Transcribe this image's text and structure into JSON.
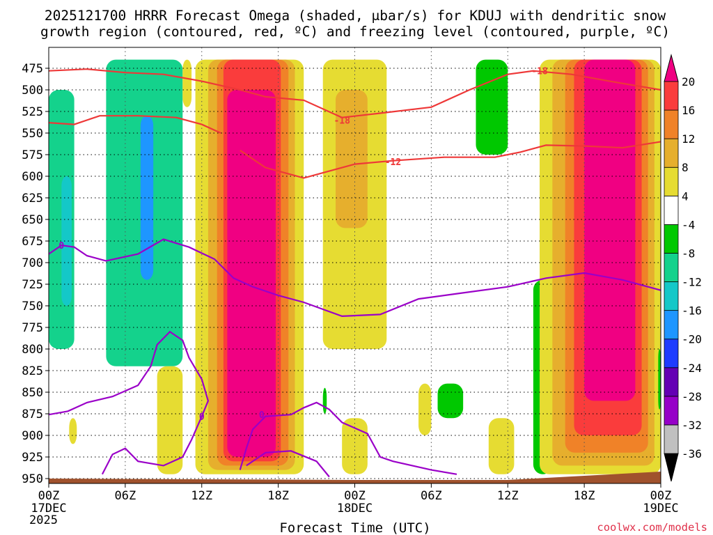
{
  "chart_data": {
    "type": "heatmap",
    "title_line1": "2025121700 HRRR Forecast Omega (shaded, μbar/s) for KDUJ with dendritic snow",
    "title_line2": "growth region (contoured, red, ºC) and freezing level (contoured, purple, ºC)",
    "xlabel": "Forecast Time (UTC)",
    "credit": "coolwx.com/models",
    "x_range_hours": [
      0,
      48
    ],
    "x_ticks": [
      {
        "h": 0,
        "label": "00Z",
        "sub1": "17DEC",
        "sub2": "2025"
      },
      {
        "h": 6,
        "label": "06Z",
        "sub1": "",
        "sub2": ""
      },
      {
        "h": 12,
        "label": "12Z",
        "sub1": "",
        "sub2": ""
      },
      {
        "h": 18,
        "label": "18Z",
        "sub1": "",
        "sub2": ""
      },
      {
        "h": 24,
        "label": "00Z",
        "sub1": "18DEC",
        "sub2": ""
      },
      {
        "h": 30,
        "label": "06Z",
        "sub1": "",
        "sub2": ""
      },
      {
        "h": 36,
        "label": "12Z",
        "sub1": "",
        "sub2": ""
      },
      {
        "h": 42,
        "label": "18Z",
        "sub1": "",
        "sub2": ""
      },
      {
        "h": 48,
        "label": "00Z",
        "sub1": "19DEC",
        "sub2": ""
      }
    ],
    "y_ticks_hpa": [
      475,
      500,
      525,
      550,
      575,
      600,
      625,
      650,
      675,
      700,
      725,
      750,
      775,
      800,
      825,
      850,
      875,
      900,
      925,
      950
    ],
    "colorbar": {
      "colors": [
        "#c0c0c0",
        "#9600c8",
        "#6400b4",
        "#1e3cff",
        "#1e96ff",
        "#14c8c8",
        "#14d28c",
        "#00c800",
        "#ffffff",
        "#e6dc32",
        "#e6af2d",
        "#f08228",
        "#fa3c3c",
        "#f00082"
      ],
      "labels": [
        "-36",
        "-32",
        "-28",
        "-24",
        "-20",
        "-16",
        "-12",
        "-8",
        "-4",
        "4",
        "8",
        "12",
        "16",
        "20"
      ],
      "below_color": "#000000",
      "above_color": "#f00082"
    },
    "terrain_color": "#a0522d",
    "omega_cells": [
      {
        "h0": 0,
        "h1": 2,
        "p0": 500,
        "p1": 800,
        "v": -10
      },
      {
        "h0": 1,
        "h1": 1.8,
        "p0": 600,
        "p1": 750,
        "v": -14
      },
      {
        "h0": 4.5,
        "h1": 10.5,
        "p0": 465,
        "p1": 820,
        "v": -10
      },
      {
        "h0": 7.2,
        "h1": 8.2,
        "p0": 530,
        "p1": 720,
        "v": -17
      },
      {
        "h0": 1.6,
        "h1": 2.2,
        "p0": 880,
        "p1": 910,
        "v": 5
      },
      {
        "h0": 8.5,
        "h1": 10.5,
        "p0": 820,
        "p1": 945,
        "v": 5
      },
      {
        "h0": 10.5,
        "h1": 11.2,
        "p0": 465,
        "p1": 520,
        "v": 5
      },
      {
        "h0": 11.5,
        "h1": 20,
        "p0": 465,
        "p1": 945,
        "v": 6
      },
      {
        "h0": 12.5,
        "h1": 19.3,
        "p0": 465,
        "p1": 940,
        "v": 10
      },
      {
        "h0": 13.2,
        "h1": 18.8,
        "p0": 465,
        "p1": 935,
        "v": 14
      },
      {
        "h0": 13.7,
        "h1": 18.2,
        "p0": 465,
        "p1": 930,
        "v": 18
      },
      {
        "h0": 14,
        "h1": 17.8,
        "p0": 500,
        "p1": 925,
        "v": 22
      },
      {
        "h0": 21.5,
        "h1": 26.5,
        "p0": 465,
        "p1": 800,
        "v": 5
      },
      {
        "h0": 22.5,
        "h1": 25,
        "p0": 500,
        "p1": 660,
        "v": 9
      },
      {
        "h0": 23,
        "h1": 25,
        "p0": 880,
        "p1": 945,
        "v": 5
      },
      {
        "h0": 29,
        "h1": 30,
        "p0": 840,
        "p1": 900,
        "v": 5
      },
      {
        "h0": 21.5,
        "h1": 21.8,
        "p0": 845,
        "p1": 875,
        "v": -6
      },
      {
        "h0": 30.5,
        "h1": 32.5,
        "p0": 840,
        "p1": 880,
        "v": -8
      },
      {
        "h0": 33.5,
        "h1": 36,
        "p0": 465,
        "p1": 575,
        "v": -7
      },
      {
        "h0": 34.5,
        "h1": 36.5,
        "p0": 880,
        "p1": 945,
        "v": 5
      },
      {
        "h0": 38,
        "h1": 39.5,
        "p0": 720,
        "p1": 945,
        "v": -8
      },
      {
        "h0": 38.5,
        "h1": 39.2,
        "p0": 860,
        "p1": 900,
        "v": -17
      },
      {
        "h0": 38.5,
        "h1": 48,
        "p0": 465,
        "p1": 945,
        "v": 5
      },
      {
        "h0": 39.5,
        "h1": 47.5,
        "p0": 465,
        "p1": 935,
        "v": 9
      },
      {
        "h0": 40.5,
        "h1": 47,
        "p0": 465,
        "p1": 920,
        "v": 14
      },
      {
        "h0": 41.2,
        "h1": 46.5,
        "p0": 465,
        "p1": 900,
        "v": 18
      },
      {
        "h0": 42,
        "h1": 46,
        "p0": 465,
        "p1": 860,
        "v": 22
      },
      {
        "h0": 47.8,
        "h1": 48,
        "p0": 800,
        "p1": 870,
        "v": -8
      }
    ],
    "dgz_isotherms": [
      {
        "label": "-18",
        "label_at": [
          23,
          535
        ],
        "label2_at": [
          38.5,
          478
        ],
        "points": [
          [
            0,
            478
          ],
          [
            3,
            476
          ],
          [
            6,
            480
          ],
          [
            9,
            482
          ],
          [
            12,
            490
          ],
          [
            15,
            500
          ],
          [
            17,
            508
          ],
          [
            20,
            512
          ],
          [
            23,
            532
          ],
          [
            26,
            527
          ],
          [
            30,
            520
          ],
          [
            33,
            500
          ],
          [
            36,
            482
          ],
          [
            38,
            478
          ],
          [
            41,
            482
          ],
          [
            44,
            490
          ],
          [
            48,
            500
          ]
        ]
      },
      {
        "label": "-18",
        "label_at": null,
        "label2_at": null,
        "points": [
          [
            0,
            538
          ],
          [
            2,
            540
          ],
          [
            4,
            530
          ],
          [
            7,
            530
          ],
          [
            10,
            532
          ],
          [
            12,
            540
          ],
          [
            13.5,
            550
          ]
        ]
      },
      {
        "label": "-12",
        "label_at": [
          27,
          583
        ],
        "label2_at": null,
        "points": [
          [
            15,
            570
          ],
          [
            17,
            590
          ],
          [
            20,
            602
          ],
          [
            22,
            594
          ],
          [
            24,
            586
          ],
          [
            27,
            582
          ],
          [
            31,
            578
          ],
          [
            35,
            578
          ],
          [
            37,
            572
          ],
          [
            39,
            564
          ],
          [
            42,
            565
          ],
          [
            45,
            567
          ],
          [
            48,
            560
          ]
        ]
      }
    ],
    "freezing_level": [
      {
        "label": "0",
        "label_at": [
          1,
          680
        ],
        "points": [
          [
            0,
            690
          ],
          [
            1,
            680
          ],
          [
            2,
            682
          ],
          [
            3,
            692
          ],
          [
            4.5,
            698
          ],
          [
            7,
            690
          ],
          [
            9,
            673
          ],
          [
            11,
            682
          ],
          [
            13,
            696
          ],
          [
            14.5,
            718
          ],
          [
            16,
            728
          ],
          [
            18,
            738
          ],
          [
            20,
            746
          ],
          [
            23,
            762
          ],
          [
            26,
            760
          ],
          [
            29,
            742
          ],
          [
            32,
            736
          ],
          [
            36,
            728
          ],
          [
            39,
            718
          ],
          [
            42,
            712
          ],
          [
            45,
            720
          ],
          [
            48,
            732
          ]
        ]
      },
      {
        "label": "0",
        "label_at": [
          12,
          878
        ],
        "points": [
          [
            0,
            876
          ],
          [
            1.5,
            872
          ],
          [
            3,
            862
          ],
          [
            5,
            855
          ],
          [
            7,
            842
          ],
          [
            8,
            820
          ],
          [
            8.5,
            795
          ],
          [
            9.5,
            780
          ],
          [
            10.5,
            790
          ],
          [
            11,
            810
          ],
          [
            12,
            835
          ],
          [
            12.5,
            860
          ],
          [
            12,
            878
          ],
          [
            11.2,
            905
          ],
          [
            10.5,
            925
          ],
          [
            9,
            935
          ],
          [
            7,
            930
          ],
          [
            6,
            915
          ],
          [
            5,
            922
          ],
          [
            4.2,
            945
          ]
        ]
      },
      {
        "label": "0",
        "label_at": [
          16.7,
          876
        ],
        "points": [
          [
            15,
            940
          ],
          [
            15.5,
            915
          ],
          [
            16,
            893
          ],
          [
            17,
            878
          ],
          [
            19,
            876
          ],
          [
            20,
            868
          ],
          [
            21,
            862
          ],
          [
            22,
            870
          ],
          [
            23,
            885
          ],
          [
            25,
            898
          ],
          [
            26,
            925
          ],
          [
            27,
            930
          ],
          [
            30,
            940
          ],
          [
            32,
            945
          ]
        ]
      },
      {
        "label": "",
        "label_at": null,
        "points": [
          [
            15.5,
            935
          ],
          [
            17,
            920
          ],
          [
            19,
            918
          ],
          [
            21,
            930
          ],
          [
            22,
            948
          ]
        ]
      }
    ]
  }
}
